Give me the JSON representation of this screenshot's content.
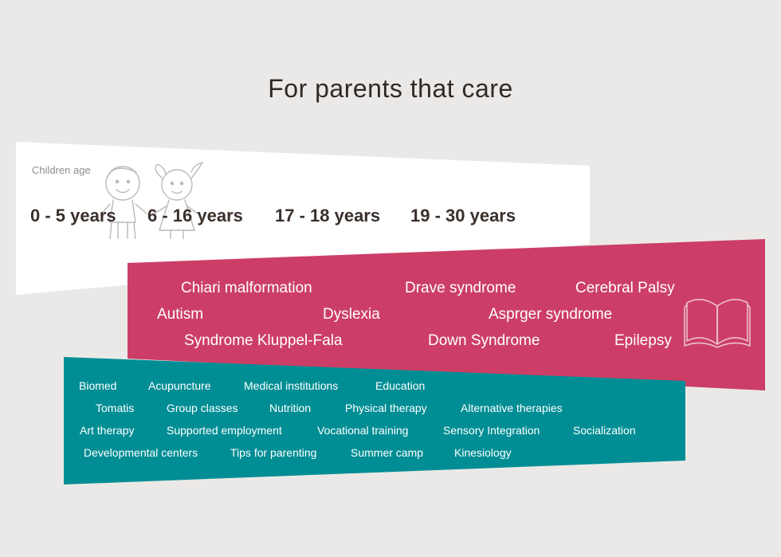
{
  "header": {
    "title": "For parents that care"
  },
  "age_panel": {
    "label": "Children age",
    "ranges": [
      "0 - 5 years",
      "6 - 16 years",
      "17 - 18 years",
      "19 - 30 years"
    ],
    "illustration_icon": "kids-illustration-icon"
  },
  "conditions_panel": {
    "items": [
      "Chiari malformation",
      "Drave syndrome",
      "Cerebral Palsy",
      "Autism",
      "Dyslexia",
      "Asprger syndrome",
      "Syndrome Kluppel-Fala",
      "Down Syndrome",
      "Epilepsy"
    ],
    "illustration_icon": "open-book-icon"
  },
  "topics_panel": {
    "items": [
      "Biomed",
      "Acupuncture",
      "Medical institutions",
      "Education",
      "Tomatis",
      "Group classes",
      "Nutrition",
      "Physical therapy",
      "Alternative therapies",
      "Art therapy",
      "Supported employment",
      "Vocational training",
      "Sensory Integration",
      "Socialization",
      "Developmental centers",
      "Tips for parenting",
      "Summer camp",
      "Kinesiology"
    ]
  },
  "colors": {
    "background": "#ebe9e7",
    "age_panel": "#ffffff",
    "conditions_panel": "#cc3e68",
    "topics_panel": "#008e94",
    "text_dark": "#3a302b"
  }
}
